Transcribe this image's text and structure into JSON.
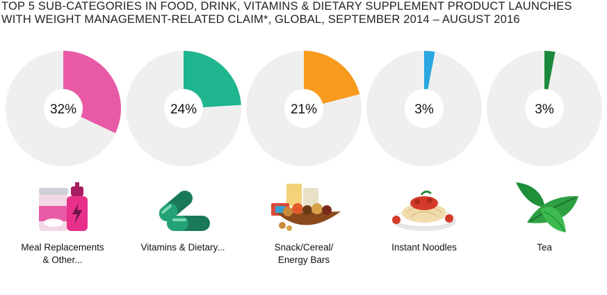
{
  "title_lines": [
    "TOP 5 SUB-CATEGORIES IN FOOD, DRINK, VITAMINS & DIETARY SUPPLEMENT  PRODUCT LAUNCHES",
    "WITH WEIGHT MANAGEMENT-RELATED CLAIM*, GLOBAL, SEPTEMBER 2014 – AUGUST 2016"
  ],
  "colors": {
    "track": "#efefef",
    "meal": "#e85aa6",
    "vitamins": "#1fb58f",
    "snack": "#f79a1e",
    "noodles": "#2aa6e0",
    "tea": "#1a8a3a"
  },
  "chart_data": {
    "type": "pie",
    "unit": "%",
    "items": [
      {
        "category": "Meal Replacements & Other...",
        "label_lines": [
          "Meal Replacements",
          "& Other..."
        ],
        "value": 32,
        "value_label": "32%",
        "color": "#e85aa6",
        "icon": "shake-bottle-icon"
      },
      {
        "category": "Vitamins & Dietary...",
        "label_lines": [
          "Vitamins & Dietary..."
        ],
        "value": 24,
        "value_label": "24%",
        "color": "#1fb58f",
        "icon": "capsule-icon"
      },
      {
        "category": "Snack/Cereal/ Energy Bars",
        "label_lines": [
          "Snack/Cereal/",
          "Energy Bars"
        ],
        "value": 21,
        "value_label": "21%",
        "color": "#f79a1e",
        "icon": "snack-bowl-icon"
      },
      {
        "category": "Instant Noodles",
        "label_lines": [
          "Instant Noodles"
        ],
        "value": 3,
        "value_label": "3%",
        "color": "#2aa6e0",
        "icon": "noodle-plate-icon"
      },
      {
        "category": "Tea",
        "label_lines": [
          "Tea"
        ],
        "value": 3,
        "value_label": "3%",
        "color": "#1a8a3a",
        "icon": "tea-leaves-icon"
      }
    ]
  }
}
